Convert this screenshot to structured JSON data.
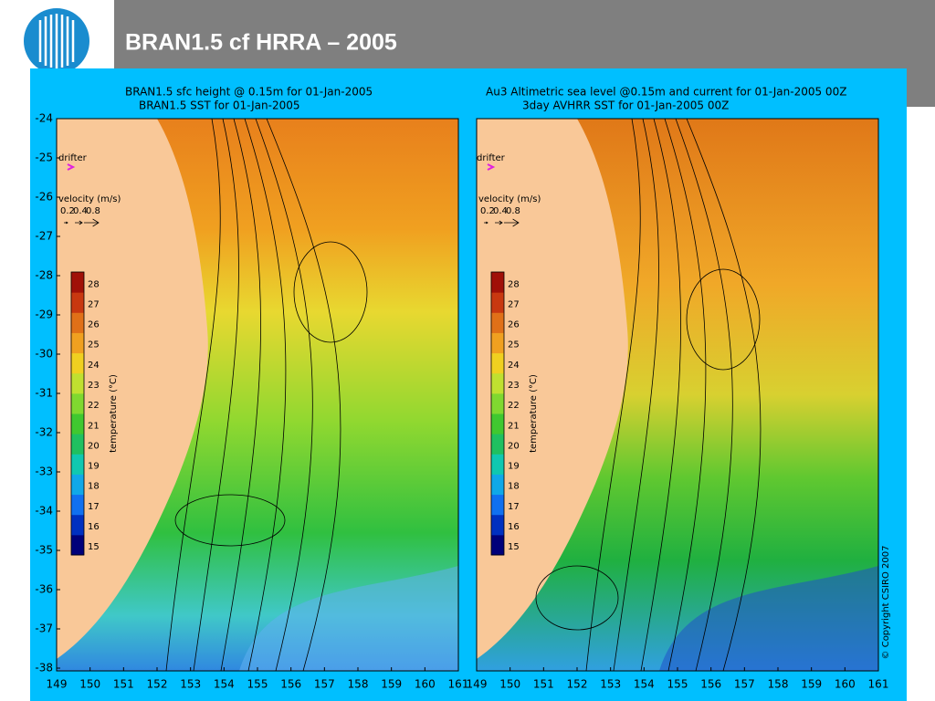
{
  "header": {
    "title": "BRAN1.5 cf HRRA – 2005"
  },
  "panels": [
    {
      "title_lines": [
        "BRAN1.5 sfc height @ 0.15m for 01-Jan-2005",
        "BRAN1.5 SST for 01-Jan-2005"
      ]
    },
    {
      "title_lines": [
        "Au3 Altimetric sea level  @0.15m and current for 01-Jan-2005 00Z",
        "3day AVHRR SST for 01-Jan-2005 00Z"
      ],
      "copyright": "© Copyright CSIRO 2007"
    }
  ],
  "yticks": [
    -24,
    -25,
    -26,
    -27,
    -28,
    -29,
    -30,
    -31,
    -32,
    -33,
    -34,
    -35,
    -36,
    -37,
    -38
  ],
  "xticks": [
    149,
    150,
    151,
    152,
    153,
    154,
    155,
    156,
    157,
    158,
    159,
    160,
    161
  ],
  "drifter_label": "drifter",
  "velocity_legend": {
    "title": "velocity (m/s)",
    "values": [
      0.2,
      0.4,
      0.8
    ]
  },
  "colorbar": {
    "label": "temperature (°C)",
    "ticks": [
      15,
      16,
      17,
      18,
      19,
      20,
      21,
      22,
      23,
      24,
      25,
      26,
      27,
      28
    ]
  }
}
